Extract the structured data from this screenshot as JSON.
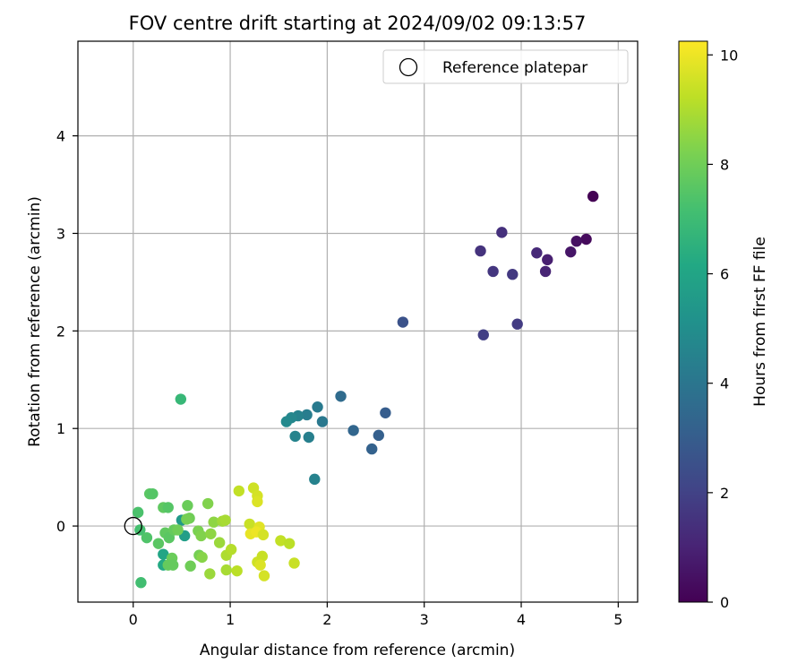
{
  "chart_data": {
    "type": "scatter",
    "title": "FOV centre drift starting at 2024/09/02 09:13:57",
    "xlabel": "Angular distance from reference (arcmin)",
    "ylabel": "Rotation from reference (arcmin)",
    "xlim": [
      -0.57,
      5.2
    ],
    "ylim": [
      -0.78,
      4.97
    ],
    "xticks": [
      0,
      1,
      2,
      3,
      4,
      5
    ],
    "yticks": [
      0,
      1,
      2,
      3,
      4
    ],
    "grid": true,
    "legend": {
      "placement": "top-right",
      "entries": [
        "Reference platepar"
      ]
    },
    "reference_point": {
      "x": 0,
      "y": 0,
      "label": "Reference platepar"
    },
    "colorbar": {
      "label": "Hours from first FF file",
      "colormap": "viridis",
      "range": [
        0,
        10.25
      ],
      "ticks": [
        0,
        2,
        4,
        6,
        8,
        10
      ]
    },
    "points": [
      {
        "x": 4.74,
        "y": 3.38,
        "hours": 0.0
      },
      {
        "x": 4.67,
        "y": 2.94,
        "hours": 0.25
      },
      {
        "x": 4.57,
        "y": 2.92,
        "hours": 0.45
      },
      {
        "x": 4.51,
        "y": 2.81,
        "hours": 0.6
      },
      {
        "x": 4.27,
        "y": 2.73,
        "hours": 0.9
      },
      {
        "x": 4.25,
        "y": 2.61,
        "hours": 1.05
      },
      {
        "x": 4.16,
        "y": 2.8,
        "hours": 1.2
      },
      {
        "x": 3.8,
        "y": 3.01,
        "hours": 1.4
      },
      {
        "x": 3.58,
        "y": 2.82,
        "hours": 1.5
      },
      {
        "x": 3.71,
        "y": 2.61,
        "hours": 1.6
      },
      {
        "x": 3.91,
        "y": 2.58,
        "hours": 1.7
      },
      {
        "x": 3.96,
        "y": 2.07,
        "hours": 1.8
      },
      {
        "x": 3.61,
        "y": 1.96,
        "hours": 1.9
      },
      {
        "x": 2.78,
        "y": 2.09,
        "hours": 2.6
      },
      {
        "x": 2.6,
        "y": 1.16,
        "hours": 3.0
      },
      {
        "x": 2.53,
        "y": 0.93,
        "hours": 3.1
      },
      {
        "x": 2.46,
        "y": 0.79,
        "hours": 3.2
      },
      {
        "x": 2.27,
        "y": 0.98,
        "hours": 3.35
      },
      {
        "x": 2.14,
        "y": 1.33,
        "hours": 3.55
      },
      {
        "x": 1.95,
        "y": 1.07,
        "hours": 4.1
      },
      {
        "x": 1.9,
        "y": 1.22,
        "hours": 4.2
      },
      {
        "x": 1.79,
        "y": 1.14,
        "hours": 4.3
      },
      {
        "x": 1.81,
        "y": 0.91,
        "hours": 4.4
      },
      {
        "x": 1.7,
        "y": 1.13,
        "hours": 4.5
      },
      {
        "x": 1.67,
        "y": 0.92,
        "hours": 4.6
      },
      {
        "x": 1.63,
        "y": 1.11,
        "hours": 4.7
      },
      {
        "x": 1.58,
        "y": 1.07,
        "hours": 4.8
      },
      {
        "x": 1.87,
        "y": 0.48,
        "hours": 4.5
      },
      {
        "x": 0.5,
        "y": 0.06,
        "hours": 5.5
      },
      {
        "x": 0.53,
        "y": -0.1,
        "hours": 5.7
      },
      {
        "x": 0.31,
        "y": -0.29,
        "hours": 6.0
      },
      {
        "x": 0.31,
        "y": -0.4,
        "hours": 6.2
      },
      {
        "x": 0.49,
        "y": 1.3,
        "hours": 6.8
      },
      {
        "x": 0.05,
        "y": 0.14,
        "hours": 7.3
      },
      {
        "x": 0.07,
        "y": -0.04,
        "hours": 7.2
      },
      {
        "x": 0.14,
        "y": -0.12,
        "hours": 7.4
      },
      {
        "x": 0.08,
        "y": -0.58,
        "hours": 7.1
      },
      {
        "x": 0.17,
        "y": 0.33,
        "hours": 7.6
      },
      {
        "x": 0.2,
        "y": 0.33,
        "hours": 7.5
      },
      {
        "x": 0.26,
        "y": -0.18,
        "hours": 7.6
      },
      {
        "x": 0.31,
        "y": 0.19,
        "hours": 7.7
      },
      {
        "x": 0.36,
        "y": 0.19,
        "hours": 7.5
      },
      {
        "x": 0.33,
        "y": -0.07,
        "hours": 7.7
      },
      {
        "x": 0.37,
        "y": -0.12,
        "hours": 7.6
      },
      {
        "x": 0.42,
        "y": -0.04,
        "hours": 7.8
      },
      {
        "x": 0.4,
        "y": -0.33,
        "hours": 7.9
      },
      {
        "x": 0.36,
        "y": -0.4,
        "hours": 7.8
      },
      {
        "x": 0.41,
        "y": -0.4,
        "hours": 7.8
      },
      {
        "x": 0.46,
        "y": -0.04,
        "hours": 8.0
      },
      {
        "x": 0.56,
        "y": 0.21,
        "hours": 7.9
      },
      {
        "x": 0.58,
        "y": 0.08,
        "hours": 8.0
      },
      {
        "x": 0.55,
        "y": 0.07,
        "hours": 8.1
      },
      {
        "x": 0.59,
        "y": -0.41,
        "hours": 8.0
      },
      {
        "x": 0.67,
        "y": -0.05,
        "hours": 8.2
      },
      {
        "x": 0.7,
        "y": -0.1,
        "hours": 8.3
      },
      {
        "x": 0.68,
        "y": -0.3,
        "hours": 8.1
      },
      {
        "x": 0.71,
        "y": -0.32,
        "hours": 8.4
      },
      {
        "x": 0.77,
        "y": 0.23,
        "hours": 8.3
      },
      {
        "x": 0.8,
        "y": -0.08,
        "hours": 8.5
      },
      {
        "x": 0.79,
        "y": -0.49,
        "hours": 8.7
      },
      {
        "x": 0.83,
        "y": 0.04,
        "hours": 8.5
      },
      {
        "x": 0.89,
        "y": -0.17,
        "hours": 8.7
      },
      {
        "x": 0.92,
        "y": 0.05,
        "hours": 8.8
      },
      {
        "x": 0.95,
        "y": 0.06,
        "hours": 8.9
      },
      {
        "x": 0.96,
        "y": -0.3,
        "hours": 9.0
      },
      {
        "x": 0.96,
        "y": -0.45,
        "hours": 8.9
      },
      {
        "x": 1.01,
        "y": -0.24,
        "hours": 9.1
      },
      {
        "x": 1.07,
        "y": -0.46,
        "hours": 9.2
      },
      {
        "x": 1.09,
        "y": 0.36,
        "hours": 9.3
      },
      {
        "x": 1.2,
        "y": 0.02,
        "hours": 9.4
      },
      {
        "x": 1.24,
        "y": 0.39,
        "hours": 9.5
      },
      {
        "x": 1.28,
        "y": 0.31,
        "hours": 9.6
      },
      {
        "x": 1.28,
        "y": 0.25,
        "hours": 9.7
      },
      {
        "x": 1.3,
        "y": -0.01,
        "hours": 9.8
      },
      {
        "x": 1.21,
        "y": -0.08,
        "hours": 9.9
      },
      {
        "x": 1.27,
        "y": -0.06,
        "hours": 10.0
      },
      {
        "x": 1.34,
        "y": -0.09,
        "hours": 9.6
      },
      {
        "x": 1.28,
        "y": -0.37,
        "hours": 9.5
      },
      {
        "x": 1.33,
        "y": -0.31,
        "hours": 9.4
      },
      {
        "x": 1.31,
        "y": -0.4,
        "hours": 9.7
      },
      {
        "x": 1.35,
        "y": -0.51,
        "hours": 9.6
      },
      {
        "x": 1.52,
        "y": -0.15,
        "hours": 9.3
      },
      {
        "x": 1.61,
        "y": -0.18,
        "hours": 9.2
      },
      {
        "x": 1.66,
        "y": -0.38,
        "hours": 9.4
      }
    ]
  }
}
